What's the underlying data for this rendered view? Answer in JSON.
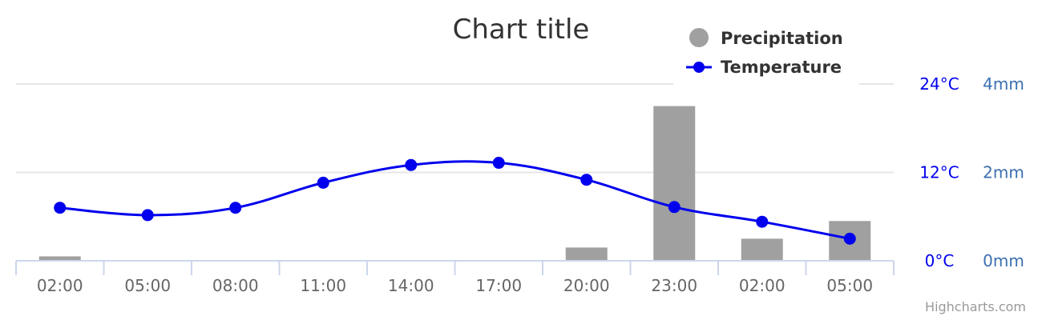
{
  "chart_data": {
    "type": "bar+line",
    "title": "Chart title",
    "categories": [
      "02:00",
      "05:00",
      "08:00",
      "11:00",
      "14:00",
      "17:00",
      "20:00",
      "23:00",
      "02:00",
      "05:00"
    ],
    "series": [
      {
        "name": "Precipitation",
        "type": "bar",
        "axis": "right",
        "unit": "mm",
        "color": "#a0a0a0",
        "values": [
          0.1,
          0.0,
          0.0,
          0.0,
          0.0,
          0.0,
          0.3,
          3.5,
          0.5,
          0.9
        ]
      },
      {
        "name": "Temperature",
        "type": "line",
        "axis": "left",
        "unit": "°C",
        "color": "#0000ee",
        "values": [
          7.2,
          6.2,
          7.2,
          10.6,
          13.0,
          13.3,
          11.0,
          7.3,
          5.3,
          3.0
        ]
      }
    ],
    "y_left": {
      "min": 0,
      "max": 24,
      "ticks": [
        "0°C",
        "12°C",
        "24°C"
      ],
      "color": "#0000ee"
    },
    "y_right": {
      "min": 0,
      "max": 4,
      "ticks": [
        "0mm",
        "2mm",
        "4mm"
      ],
      "color": "#3b6fb0"
    },
    "grid": true,
    "legend_position": "top-right",
    "credits": "Highcharts.com"
  }
}
